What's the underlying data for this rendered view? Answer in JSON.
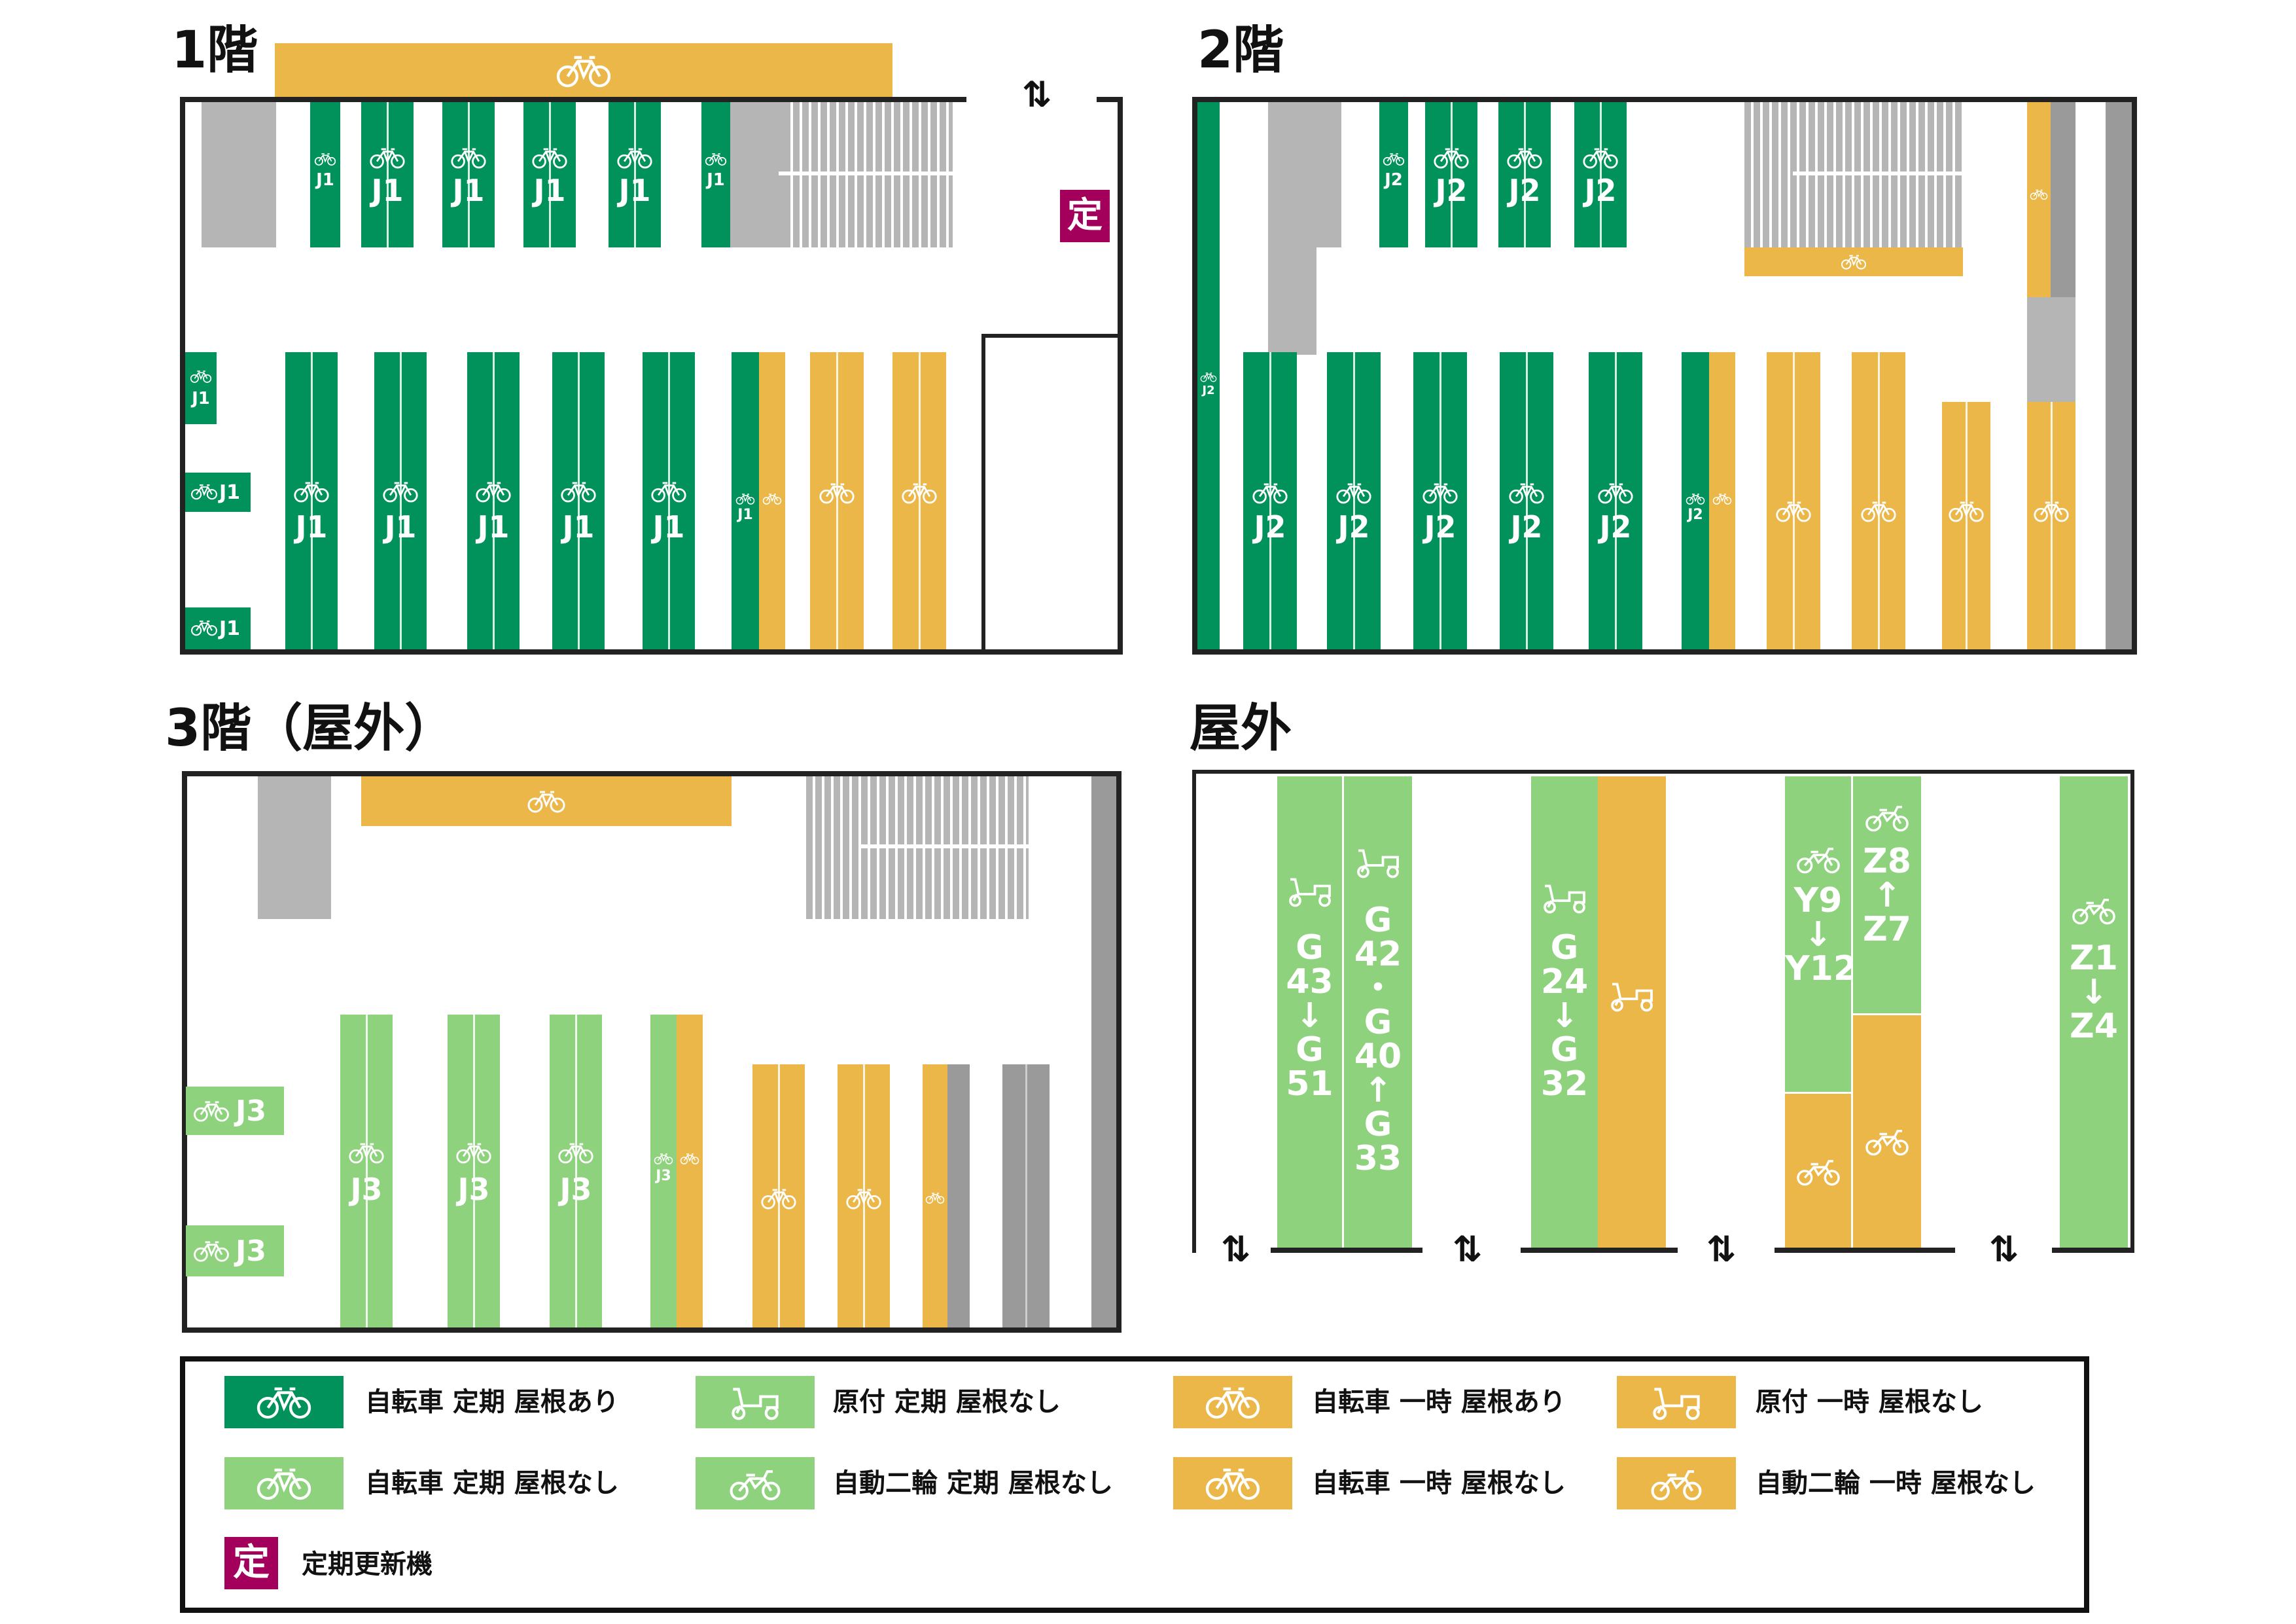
{
  "colors": {
    "bike_regular_roofed": "#00925a",
    "regular_unroofed": "#8fd27e",
    "temporary": "#eab748",
    "structure": "#b5b5b5",
    "machine": "#a3005b"
  },
  "floors": {
    "f1": {
      "title": "1階",
      "machine_label": "定",
      "code": "J1"
    },
    "f2": {
      "title": "2階",
      "code": "J2"
    },
    "f3": {
      "title": "3階（屋外）",
      "code": "J3"
    },
    "outdoor": {
      "title": "屋外",
      "col1": {
        "a": [
          "G",
          "43",
          "↓",
          "G",
          "51"
        ],
        "b": [
          "G",
          "42",
          "・",
          "G",
          "40",
          "↑",
          "G",
          "33"
        ]
      },
      "col2": {
        "a": [
          "G",
          "24",
          "↓",
          "G",
          "32"
        ]
      },
      "col3": {
        "a": [
          "Y9",
          "↓",
          "Y12"
        ],
        "b": [
          "Z8",
          "↑",
          "Z7"
        ]
      },
      "col4": {
        "a": [
          "Z1",
          "↓",
          "Z4"
        ]
      }
    }
  },
  "icons": {
    "bicycle": "bicycle-icon",
    "scooter": "scooter-icon",
    "motorcycle": "motorcycle-icon",
    "direction": "⇅"
  },
  "legend": [
    {
      "icon": "bicycle",
      "color": "#00925a",
      "text": "自転車 定期 屋根あり"
    },
    {
      "icon": "scooter",
      "color": "#8fd27e",
      "text": "原付 定期 屋根なし"
    },
    {
      "icon": "bicycle",
      "color": "#eab748",
      "text": "自転車 一時 屋根あり"
    },
    {
      "icon": "scooter",
      "color": "#eab748",
      "text": "原付 一時 屋根なし"
    },
    {
      "icon": "bicycle",
      "color": "#8fd27e",
      "text": "自転車 定期 屋根なし"
    },
    {
      "icon": "motorcycle",
      "color": "#8fd27e",
      "text": "自動二輪 定期 屋根なし"
    },
    {
      "icon": "bicycle",
      "color": "#eab748",
      "text": "自転車 一時 屋根なし"
    },
    {
      "icon": "motorcycle",
      "color": "#eab748",
      "text": "自動二輪 一時 屋根なし"
    },
    {
      "icon": "machine",
      "color": "#a3005b",
      "text": "定期更新機",
      "glyph": "定"
    }
  ]
}
